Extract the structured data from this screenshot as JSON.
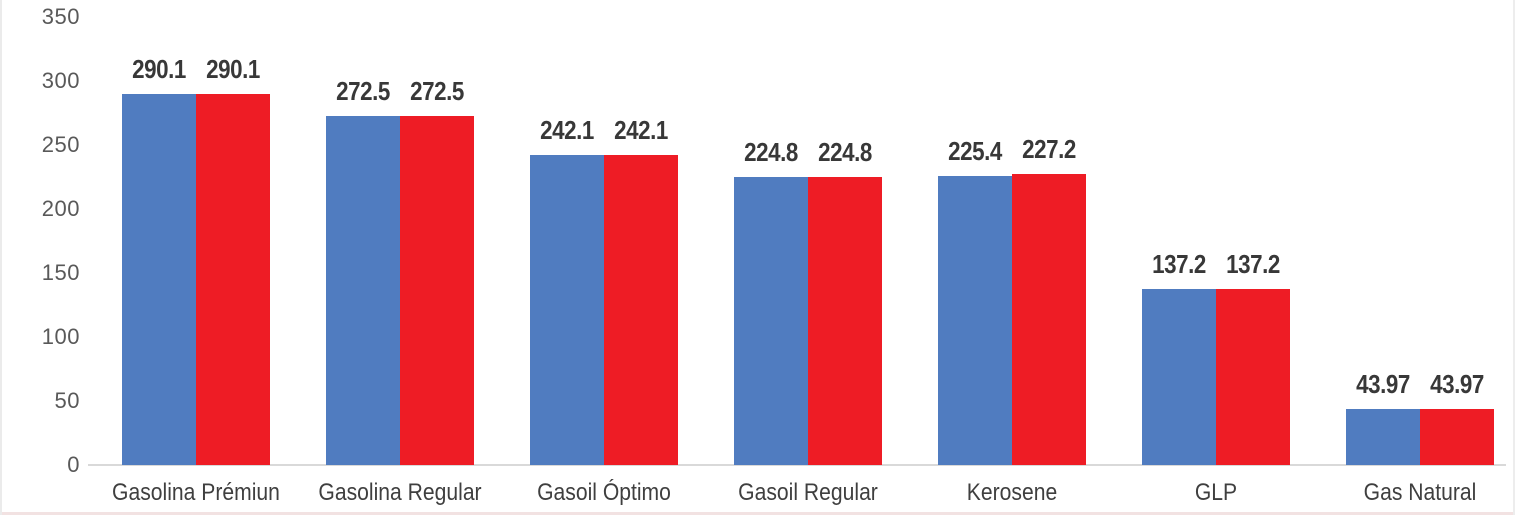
{
  "chart_data": {
    "type": "bar",
    "categories": [
      "Gasolina Prémiun",
      "Gasolina Regular",
      "Gasoil Óptimo",
      "Gasoil Regular",
      "Kerosene",
      "GLP",
      "Gas Natural"
    ],
    "series": [
      {
        "name": "blue-series",
        "color": "#507CC0",
        "values": [
          290.1,
          272.5,
          242.1,
          224.8,
          225.4,
          137.2,
          43.97
        ],
        "labels": [
          "290.1",
          "272.5",
          "242.1",
          "224.8",
          "225.4",
          "137.2",
          "43.97"
        ]
      },
      {
        "name": "red-series",
        "color": "#EE1C25",
        "values": [
          290.1,
          272.5,
          242.1,
          224.8,
          227.2,
          137.2,
          43.97
        ],
        "labels": [
          "290.1",
          "272.5",
          "242.1",
          "224.8",
          "227.2",
          "137.2",
          "43.97"
        ]
      }
    ],
    "title": "",
    "xlabel": "",
    "ylabel": "",
    "ylim": [
      0,
      350
    ],
    "y_ticks": [
      0,
      50,
      100,
      150,
      200,
      250,
      300,
      350
    ],
    "grid": false,
    "legend_position": "none",
    "data_label_color": "#383838",
    "axis_tick_color": "#595959",
    "axis_line_color": "#d9d9d9"
  }
}
